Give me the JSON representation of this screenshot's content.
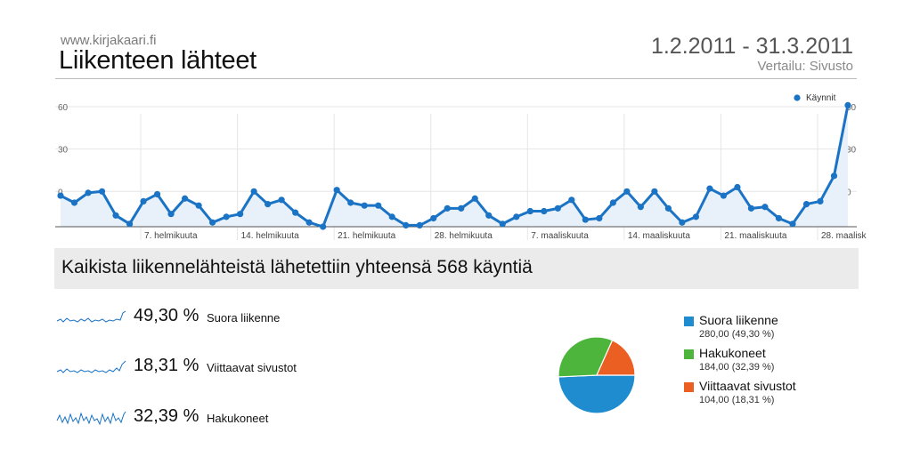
{
  "header": {
    "site": "www.kirjakaari.fi",
    "title": "Liikenteen lähteet",
    "date_range": "1.2.2011 - 31.3.2011",
    "comparison": "Vertailu: Sivusto"
  },
  "chart_data": [
    {
      "type": "line",
      "legend": [
        "Käynnit"
      ],
      "legend_position": "top-right",
      "y_ticks": [
        60,
        30,
        0
      ],
      "ylim": [
        -25,
        60
      ],
      "grid": true,
      "x_tick_labels": [
        "7. helmikuuta",
        "14. helmikuuta",
        "21. helmikuuta",
        "28. helmikuuta",
        "7. maaliskuuta",
        "14. maaliskuuta",
        "21. maaliskuuta",
        "28. maalisk"
      ],
      "color": "#1a73c4",
      "series": [
        {
          "name": "Käynnit",
          "values": [
            -3,
            -8,
            -1,
            0,
            -17,
            -23,
            -7,
            -2,
            -16,
            -5,
            -10,
            -22,
            -18,
            -16,
            0,
            -9,
            -6,
            -15,
            -22,
            -25,
            1,
            -8,
            -10,
            -10,
            -18,
            -24,
            -24,
            -19,
            -12,
            -12,
            -5,
            -17,
            -23,
            -18,
            -14,
            -14,
            -12,
            -6,
            -20,
            -19,
            -8,
            0,
            -11,
            0,
            -12,
            -22,
            -18,
            2,
            -3,
            3,
            -12,
            -11,
            -19,
            -23,
            -9,
            -7,
            11,
            61
          ]
        }
      ]
    },
    {
      "type": "pie",
      "slices": [
        {
          "label": "Suora liikenne",
          "value": 280,
          "percent": 49.3,
          "color": "#1e8ccf"
        },
        {
          "label": "Hakukoneet",
          "value": 184,
          "percent": 32.39,
          "color": "#4db53c"
        },
        {
          "label": "Viittaavat sivustot",
          "value": 104,
          "percent": 18.31,
          "color": "#ec5f22"
        }
      ]
    }
  ],
  "summary": "Kaikista liikennelähteistä lähetettiin yhteensä 568 käyntiä",
  "sources": [
    {
      "pct": "49,30 %",
      "name": "Suora liikenne"
    },
    {
      "pct": "18,31 %",
      "name": "Viittaavat sivustot"
    },
    {
      "pct": "32,39 %",
      "name": "Hakukoneet"
    }
  ],
  "pie_legend": [
    {
      "name": "Suora liikenne",
      "detail": "280,00 (49,30 %)",
      "color": "#1e8ccf"
    },
    {
      "name": "Hakukoneet",
      "detail": "184,00 (32,39 %)",
      "color": "#4db53c"
    },
    {
      "name": "Viittaavat sivustot",
      "detail": "104,00 (18,31 %)",
      "color": "#ec5f22"
    }
  ]
}
